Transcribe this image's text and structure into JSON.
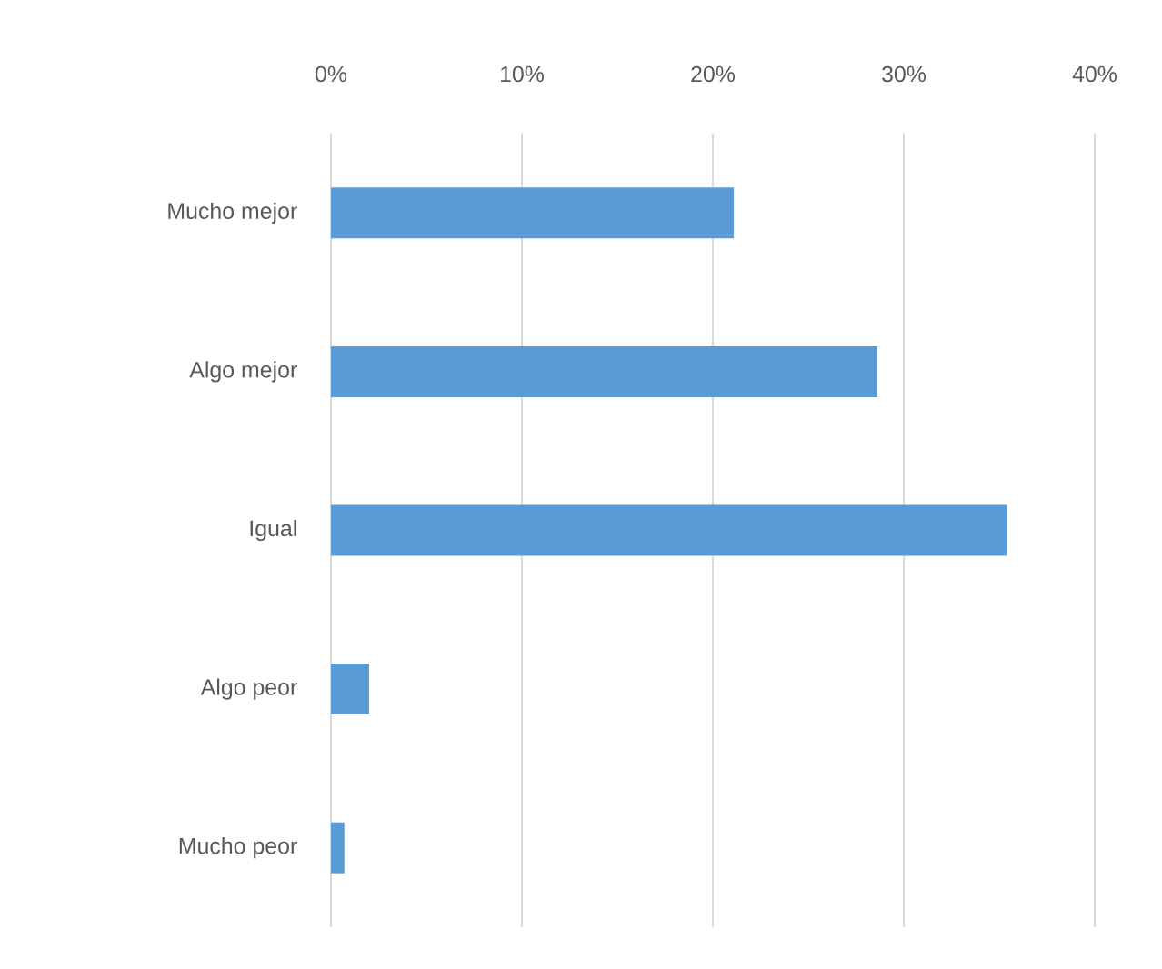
{
  "chart_data": {
    "type": "bar",
    "orientation": "horizontal",
    "categories": [
      "Mucho mejor",
      "Algo mejor",
      "Igual",
      "Algo peor",
      "Mucho peor"
    ],
    "values": [
      21.1,
      28.6,
      35.4,
      2.0,
      0.7
    ],
    "color": "#5b9bd5",
    "xlim": [
      0,
      40
    ],
    "xticks": [
      {
        "value": 0,
        "label": "0%"
      },
      {
        "value": 10,
        "label": "10%"
      },
      {
        "value": 20,
        "label": "20%"
      },
      {
        "value": 30,
        "label": "30%"
      },
      {
        "value": 40,
        "label": "40%"
      }
    ],
    "grid": "x"
  }
}
